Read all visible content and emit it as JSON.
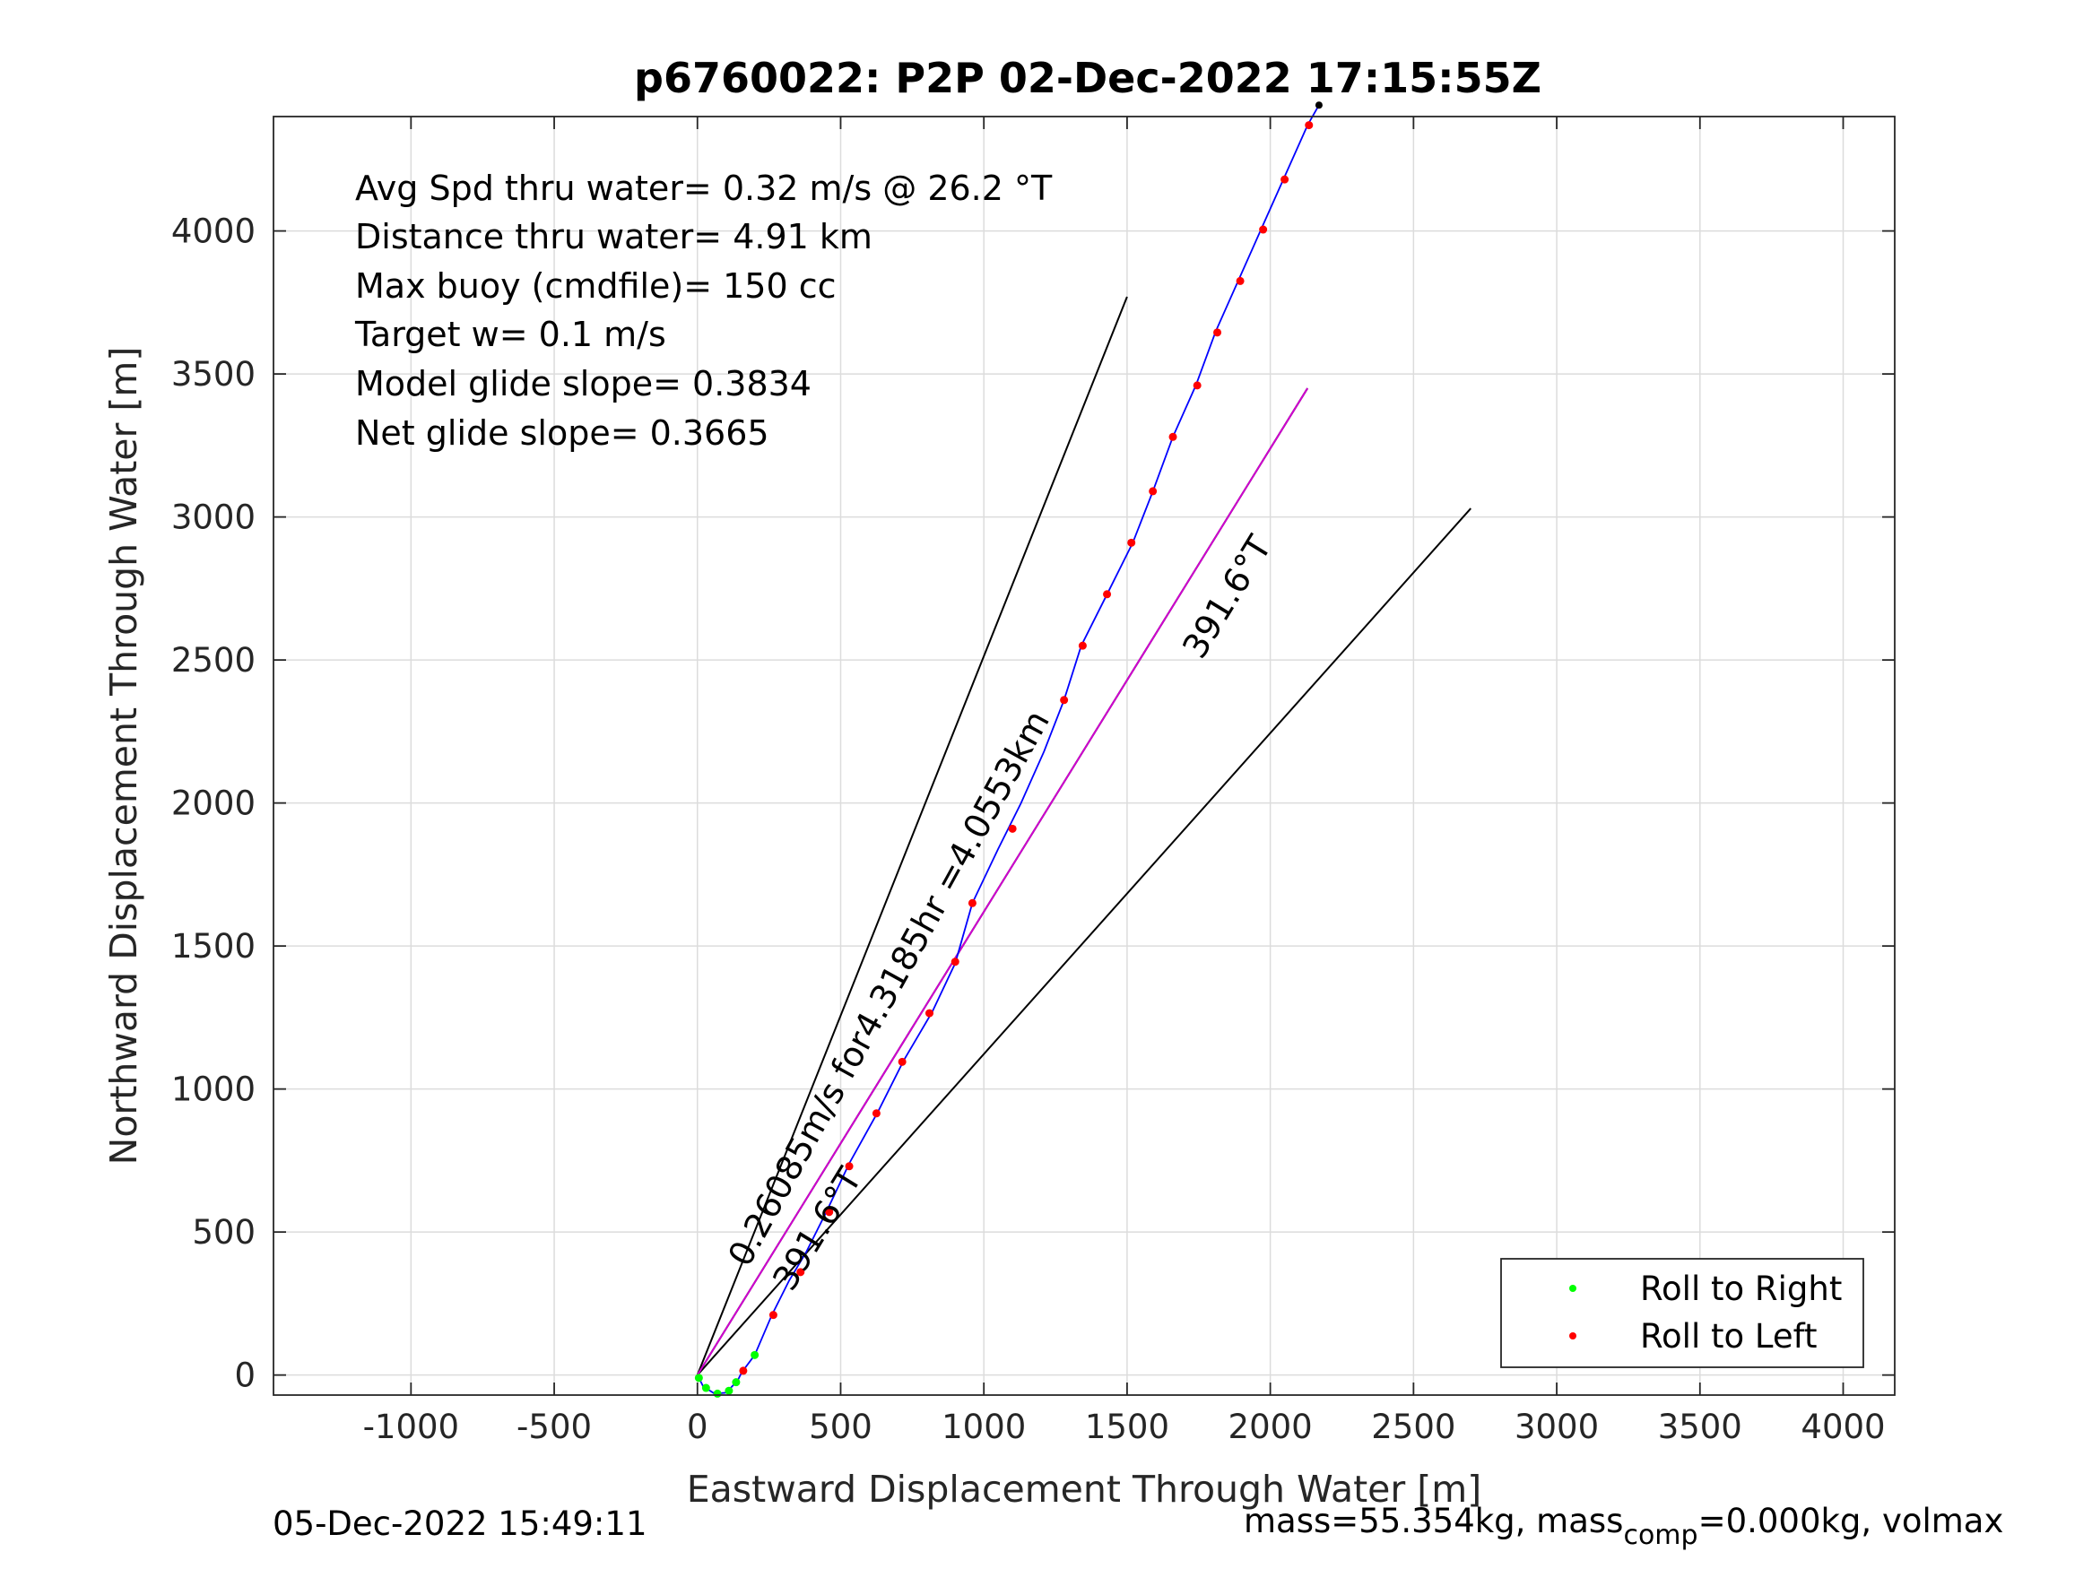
{
  "chart_data": {
    "type": "line",
    "title": "p6760022: P2P 02-Dec-2022 17:15:55Z",
    "xlabel": "Eastward Displacement Through Water [m]",
    "ylabel": "Northward Displacement Through Water [m]",
    "xlim": [
      -1480,
      4180
    ],
    "ylim": [
      -70,
      4400
    ],
    "xticks": [
      -1000,
      -500,
      0,
      500,
      1000,
      1500,
      2000,
      2500,
      3000,
      3500,
      4000
    ],
    "yticks": [
      0,
      500,
      1000,
      1500,
      2000,
      2500,
      3000,
      3500,
      4000
    ],
    "grid": true,
    "info_lines": [
      "Avg Spd thru water=  0.32 m/s @  26.2 °T",
      "Distance thru water=  4.91 km",
      "Max buoy (cmdfile)= 150 cc",
      "Target w= 0.1 m/s",
      "Model glide slope= 0.3834",
      "Net glide slope= 0.3665"
    ],
    "annotations": {
      "main": "0.26085m/s for4.3185hr =4.0553km",
      "heading_upper": "391.6°T",
      "heading_lower": "391.6°T"
    },
    "reference_lines": [
      {
        "x": [
          0,
          1500
        ],
        "y": [
          0,
          3770
        ],
        "color": "#000000"
      },
      {
        "x": [
          0,
          2130
        ],
        "y": [
          0,
          3450
        ],
        "color": "#000000"
      },
      {
        "x": [
          0,
          2700
        ],
        "y": [
          0,
          3030
        ],
        "color": "#000000"
      },
      {
        "x": [
          0,
          2130
        ],
        "y": [
          0,
          3450
        ],
        "color": "#d000d0"
      }
    ],
    "track": {
      "color": "#0000ff",
      "points": [
        [
          0,
          0
        ],
        [
          20,
          -40
        ],
        [
          60,
          -65
        ],
        [
          100,
          -62
        ],
        [
          140,
          -20
        ],
        [
          155,
          10
        ],
        [
          200,
          70
        ],
        [
          260,
          210
        ],
        [
          320,
          330
        ],
        [
          380,
          430
        ],
        [
          450,
          570
        ],
        [
          530,
          740
        ],
        [
          630,
          920
        ],
        [
          720,
          1100
        ],
        [
          820,
          1270
        ],
        [
          900,
          1440
        ],
        [
          960,
          1650
        ],
        [
          1050,
          1840
        ],
        [
          1130,
          2000
        ],
        [
          1210,
          2180
        ],
        [
          1280,
          2360
        ],
        [
          1340,
          2550
        ],
        [
          1430,
          2730
        ],
        [
          1520,
          2910
        ],
        [
          1590,
          3090
        ],
        [
          1660,
          3280
        ],
        [
          1740,
          3460
        ],
        [
          1810,
          3650
        ],
        [
          1890,
          3830
        ],
        [
          1970,
          4010
        ],
        [
          2050,
          4190
        ],
        [
          2130,
          4370
        ],
        [
          2170,
          4440
        ]
      ]
    },
    "series": [
      {
        "name": "Roll to Right",
        "color": "#00ff00",
        "points": [
          [
            5,
            -10
          ],
          [
            30,
            -45
          ],
          [
            70,
            -65
          ],
          [
            110,
            -55
          ],
          [
            135,
            -25
          ],
          [
            200,
            70
          ]
        ]
      },
      {
        "name": "Roll to Left",
        "color": "#ff0000",
        "points": [
          [
            160,
            15
          ],
          [
            265,
            210
          ],
          [
            360,
            360
          ],
          [
            460,
            570
          ],
          [
            530,
            730
          ],
          [
            625,
            915
          ],
          [
            715,
            1095
          ],
          [
            810,
            1265
          ],
          [
            900,
            1445
          ],
          [
            960,
            1650
          ],
          [
            1100,
            1910
          ],
          [
            1280,
            2360
          ],
          [
            1345,
            2550
          ],
          [
            1430,
            2730
          ],
          [
            1515,
            2910
          ],
          [
            1590,
            3090
          ],
          [
            1660,
            3280
          ],
          [
            1745,
            3460
          ],
          [
            1815,
            3645
          ],
          [
            1895,
            3825
          ],
          [
            1975,
            4005
          ],
          [
            2050,
            4180
          ],
          [
            2135,
            4370
          ]
        ]
      }
    ],
    "legend": "bottom-right"
  },
  "footer": {
    "date": "05-Dec-2022 15:49:11",
    "mass_pre": "mass=55.354kg, mass",
    "mass_sub": "comp",
    "mass_post": "=0.000kg, volmax"
  }
}
